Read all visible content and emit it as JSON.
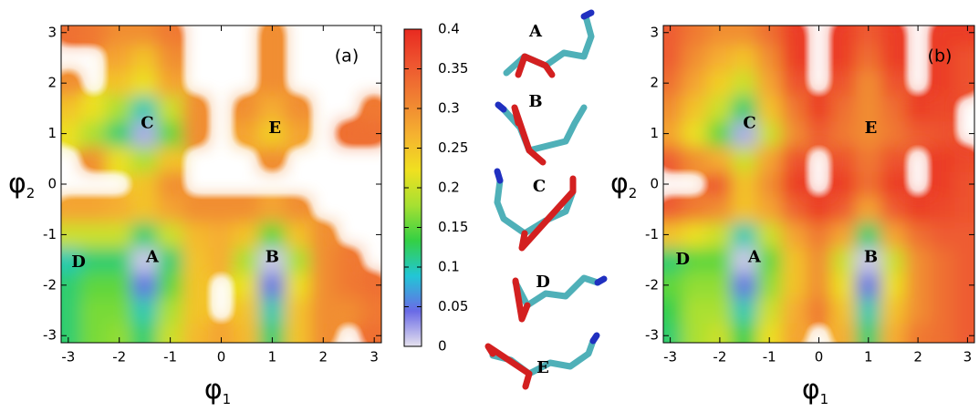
{
  "chart_data": [
    {
      "type": "heatmap",
      "panel_label": "(a)",
      "xlabel": [
        "φ",
        "1"
      ],
      "ylabel": [
        "φ",
        "2"
      ],
      "xlim": [
        -3.14,
        3.14
      ],
      "ylim": [
        -3.14,
        3.14
      ],
      "xticks": [
        -3,
        -2,
        -1,
        0,
        1,
        2,
        3
      ],
      "yticks": [
        -3,
        -2,
        -1,
        0,
        1,
        2,
        3
      ],
      "x": [
        -3,
        -2.5,
        -2,
        -1.5,
        -1,
        -0.5,
        0,
        0.5,
        1,
        1.5,
        2,
        2.5,
        3
      ],
      "y": [
        -3,
        -2.5,
        -2,
        -1.5,
        -1,
        -0.5,
        0,
        0.5,
        1,
        1.5,
        2,
        2.5,
        3
      ],
      "z": [
        [
          0.12,
          0.16,
          0.17,
          0.12,
          0.2,
          0.26,
          0.28,
          0.26,
          0.12,
          0.25,
          0.3,
          null,
          0.33
        ],
        [
          0.12,
          0.16,
          0.16,
          0.1,
          0.18,
          0.25,
          null,
          0.25,
          0.1,
          0.25,
          0.3,
          0.3,
          0.32
        ],
        [
          0.12,
          0.15,
          0.15,
          0.05,
          0.15,
          0.25,
          null,
          0.22,
          0.05,
          0.22,
          0.3,
          0.32,
          0.33
        ],
        [
          0.1,
          0.12,
          0.12,
          0.01,
          0.12,
          0.25,
          0.27,
          0.18,
          0.01,
          0.18,
          0.3,
          0.32,
          null
        ],
        [
          0.2,
          0.2,
          0.2,
          0.12,
          0.2,
          0.26,
          0.27,
          0.25,
          0.15,
          0.25,
          0.3,
          null,
          null
        ],
        [
          0.28,
          0.28,
          0.27,
          0.25,
          0.28,
          0.3,
          0.3,
          0.3,
          0.28,
          0.3,
          null,
          null,
          null
        ],
        [
          null,
          null,
          null,
          0.25,
          0.3,
          null,
          null,
          null,
          null,
          null,
          null,
          null,
          null
        ],
        [
          null,
          0.3,
          0.22,
          0.18,
          0.25,
          null,
          null,
          null,
          0.3,
          null,
          null,
          null,
          null
        ],
        [
          0.22,
          0.18,
          0.12,
          0.02,
          0.15,
          0.3,
          null,
          0.28,
          0.24,
          0.28,
          null,
          0.33,
          0.33
        ],
        [
          0.25,
          0.22,
          0.18,
          0.1,
          0.2,
          0.3,
          null,
          0.3,
          0.27,
          0.3,
          null,
          null,
          0.32
        ],
        [
          0.3,
          null,
          0.25,
          0.22,
          0.28,
          null,
          null,
          null,
          0.3,
          null,
          null,
          null,
          null
        ],
        [
          null,
          null,
          0.28,
          0.25,
          0.3,
          null,
          null,
          null,
          0.3,
          null,
          null,
          null,
          null
        ],
        [
          0.33,
          0.32,
          0.3,
          0.3,
          0.32,
          null,
          null,
          null,
          0.3,
          null,
          null,
          null,
          null
        ]
      ],
      "labels": [
        {
          "text": "A",
          "x": -1.35,
          "y": -1.45
        },
        {
          "text": "B",
          "x": 1.0,
          "y": -1.45
        },
        {
          "text": "C",
          "x": -1.45,
          "y": 1.2
        },
        {
          "text": "D",
          "x": -2.8,
          "y": -1.55
        },
        {
          "text": "E",
          "x": 1.05,
          "y": 1.1
        }
      ]
    },
    {
      "type": "heatmap",
      "panel_label": "(b)",
      "xlabel": [
        "φ",
        "1"
      ],
      "ylabel": [
        "φ",
        "2"
      ],
      "xlim": [
        -3.14,
        3.14
      ],
      "ylim": [
        -3.14,
        3.14
      ],
      "xticks": [
        -3,
        -2,
        -1,
        0,
        1,
        2,
        3
      ],
      "yticks": [
        -3,
        -2,
        -1,
        0,
        1,
        2,
        3
      ],
      "x": [
        -3,
        -2.5,
        -2,
        -1.5,
        -1,
        -0.5,
        0,
        0.5,
        1,
        1.5,
        2,
        2.5,
        3
      ],
      "y": [
        -3,
        -2.5,
        -2,
        -1.5,
        -1,
        -0.5,
        0,
        0.5,
        1,
        1.5,
        2,
        2.5,
        3
      ],
      "z": [
        [
          0.12,
          0.18,
          0.2,
          0.13,
          0.22,
          0.28,
          null,
          0.27,
          0.12,
          0.27,
          0.32,
          0.33,
          0.35
        ],
        [
          0.13,
          0.18,
          0.18,
          0.1,
          0.2,
          0.27,
          0.32,
          0.25,
          0.1,
          0.25,
          0.3,
          0.33,
          0.35
        ],
        [
          0.15,
          0.17,
          0.17,
          0.05,
          0.17,
          0.25,
          0.3,
          0.22,
          0.05,
          0.22,
          0.3,
          0.33,
          0.35
        ],
        [
          0.12,
          0.15,
          0.15,
          0.01,
          0.15,
          0.25,
          0.3,
          0.2,
          0.01,
          0.2,
          0.3,
          0.33,
          0.35
        ],
        [
          0.25,
          0.22,
          0.2,
          0.1,
          0.2,
          0.28,
          0.32,
          0.28,
          0.12,
          0.28,
          0.33,
          0.35,
          0.35
        ],
        [
          0.35,
          0.32,
          0.3,
          0.25,
          0.28,
          0.34,
          0.38,
          0.35,
          0.28,
          0.35,
          0.38,
          0.37,
          0.36
        ],
        [
          null,
          null,
          0.35,
          0.25,
          0.3,
          0.38,
          null,
          0.38,
          0.33,
          0.38,
          null,
          0.38,
          0.36
        ],
        [
          0.35,
          0.3,
          0.27,
          0.2,
          0.28,
          0.36,
          null,
          0.36,
          0.32,
          0.36,
          null,
          0.38,
          0.37
        ],
        [
          0.28,
          0.22,
          0.15,
          0.02,
          0.2,
          0.3,
          0.35,
          0.32,
          0.3,
          0.32,
          0.35,
          0.36,
          null
        ],
        [
          0.3,
          0.25,
          0.2,
          0.12,
          0.25,
          0.32,
          0.38,
          0.33,
          0.3,
          0.33,
          0.38,
          0.37,
          null
        ],
        [
          0.33,
          0.28,
          0.24,
          0.2,
          0.28,
          0.36,
          null,
          0.36,
          0.3,
          0.36,
          null,
          0.38,
          0.36
        ],
        [
          0.35,
          0.3,
          0.27,
          0.25,
          0.3,
          0.38,
          null,
          0.38,
          0.33,
          0.38,
          null,
          0.38,
          0.36
        ],
        [
          0.35,
          0.32,
          0.3,
          0.3,
          0.33,
          0.38,
          null,
          0.38,
          0.35,
          0.38,
          null,
          0.38,
          0.38
        ]
      ],
      "labels": [
        {
          "text": "A",
          "x": -1.3,
          "y": -1.45
        },
        {
          "text": "B",
          "x": 1.05,
          "y": -1.45
        },
        {
          "text": "C",
          "x": -1.4,
          "y": 1.2
        },
        {
          "text": "D",
          "x": -2.75,
          "y": -1.5
        },
        {
          "text": "E",
          "x": 1.05,
          "y": 1.1
        }
      ]
    }
  ],
  "colorbar": {
    "clim": [
      0,
      0.4
    ],
    "ticks": [
      0,
      0.05,
      0.1,
      0.15,
      0.2,
      0.25,
      0.3,
      0.35,
      0.4
    ],
    "colors": [
      "#e6e2ee",
      "#6a6ae6",
      "#22c6d6",
      "#34d044",
      "#a6e032",
      "#f0e020",
      "#f5b230",
      "#f08232",
      "#ee5630",
      "#e82a20"
    ]
  },
  "structures": [
    "A",
    "B",
    "C",
    "D",
    "E"
  ]
}
